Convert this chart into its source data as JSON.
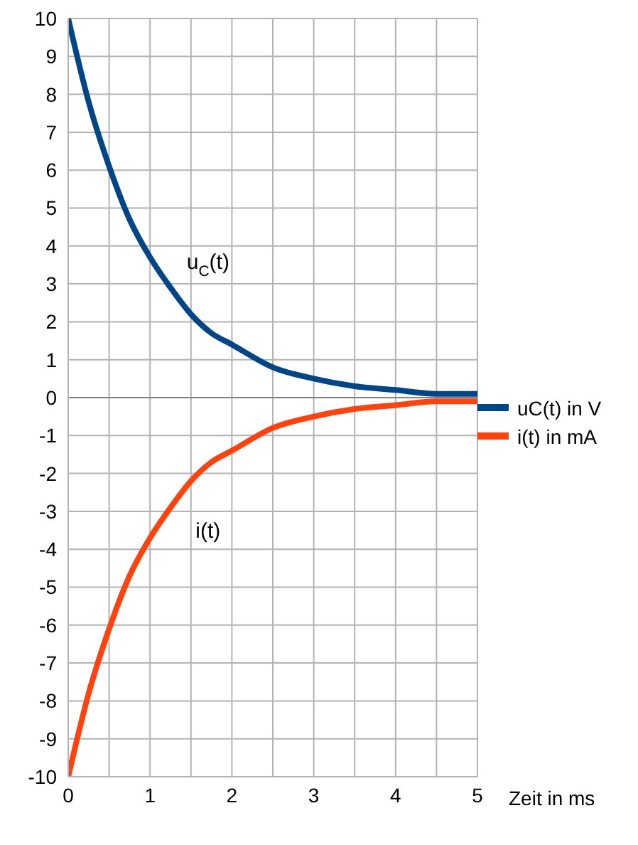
{
  "chart_data": {
    "type": "line",
    "x": [
      0,
      0.25,
      0.5,
      0.75,
      1,
      1.25,
      1.5,
      1.75,
      2,
      2.5,
      3,
      3.5,
      4,
      4.5,
      5
    ],
    "series": [
      {
        "name": "uC(t) in V",
        "color": "#004586",
        "values": [
          10,
          7.8,
          6.1,
          4.7,
          3.7,
          2.9,
          2.2,
          1.7,
          1.4,
          0.8,
          0.5,
          0.3,
          0.2,
          0.1,
          0.1
        ]
      },
      {
        "name": "i(t) in mA",
        "color": "#ff420e",
        "values": [
          -10,
          -7.8,
          -6.1,
          -4.7,
          -3.7,
          -2.9,
          -2.2,
          -1.7,
          -1.4,
          -0.8,
          -0.5,
          -0.3,
          -0.2,
          -0.1,
          -0.1
        ]
      }
    ],
    "xlabel": "Zeit in ms",
    "xlim": [
      0,
      5
    ],
    "xticks": [
      0,
      {
        "value": 0.5,
        "label": null
      },
      1,
      {
        "value": 1.5,
        "label": null
      },
      2,
      {
        "value": 2.5,
        "label": null
      },
      3,
      {
        "value": 3.5,
        "label": null
      },
      4,
      {
        "value": 4.5,
        "label": null
      },
      5
    ],
    "ylim": [
      -10,
      10
    ],
    "yticks": [
      -10,
      -9,
      -8,
      -7,
      -6,
      -5,
      -4,
      -3,
      -2,
      -1,
      0,
      1,
      2,
      3,
      4,
      5,
      6,
      7,
      8,
      9,
      10
    ],
    "grid": true,
    "legend": "right",
    "marker": "none",
    "line_style": "solid",
    "ref_lines": [
      {
        "axis": "y",
        "value": 0,
        "color": "#808080"
      }
    ],
    "annotations": [
      "u$_{C}$(t)",
      "i(t)"
    ]
  }
}
